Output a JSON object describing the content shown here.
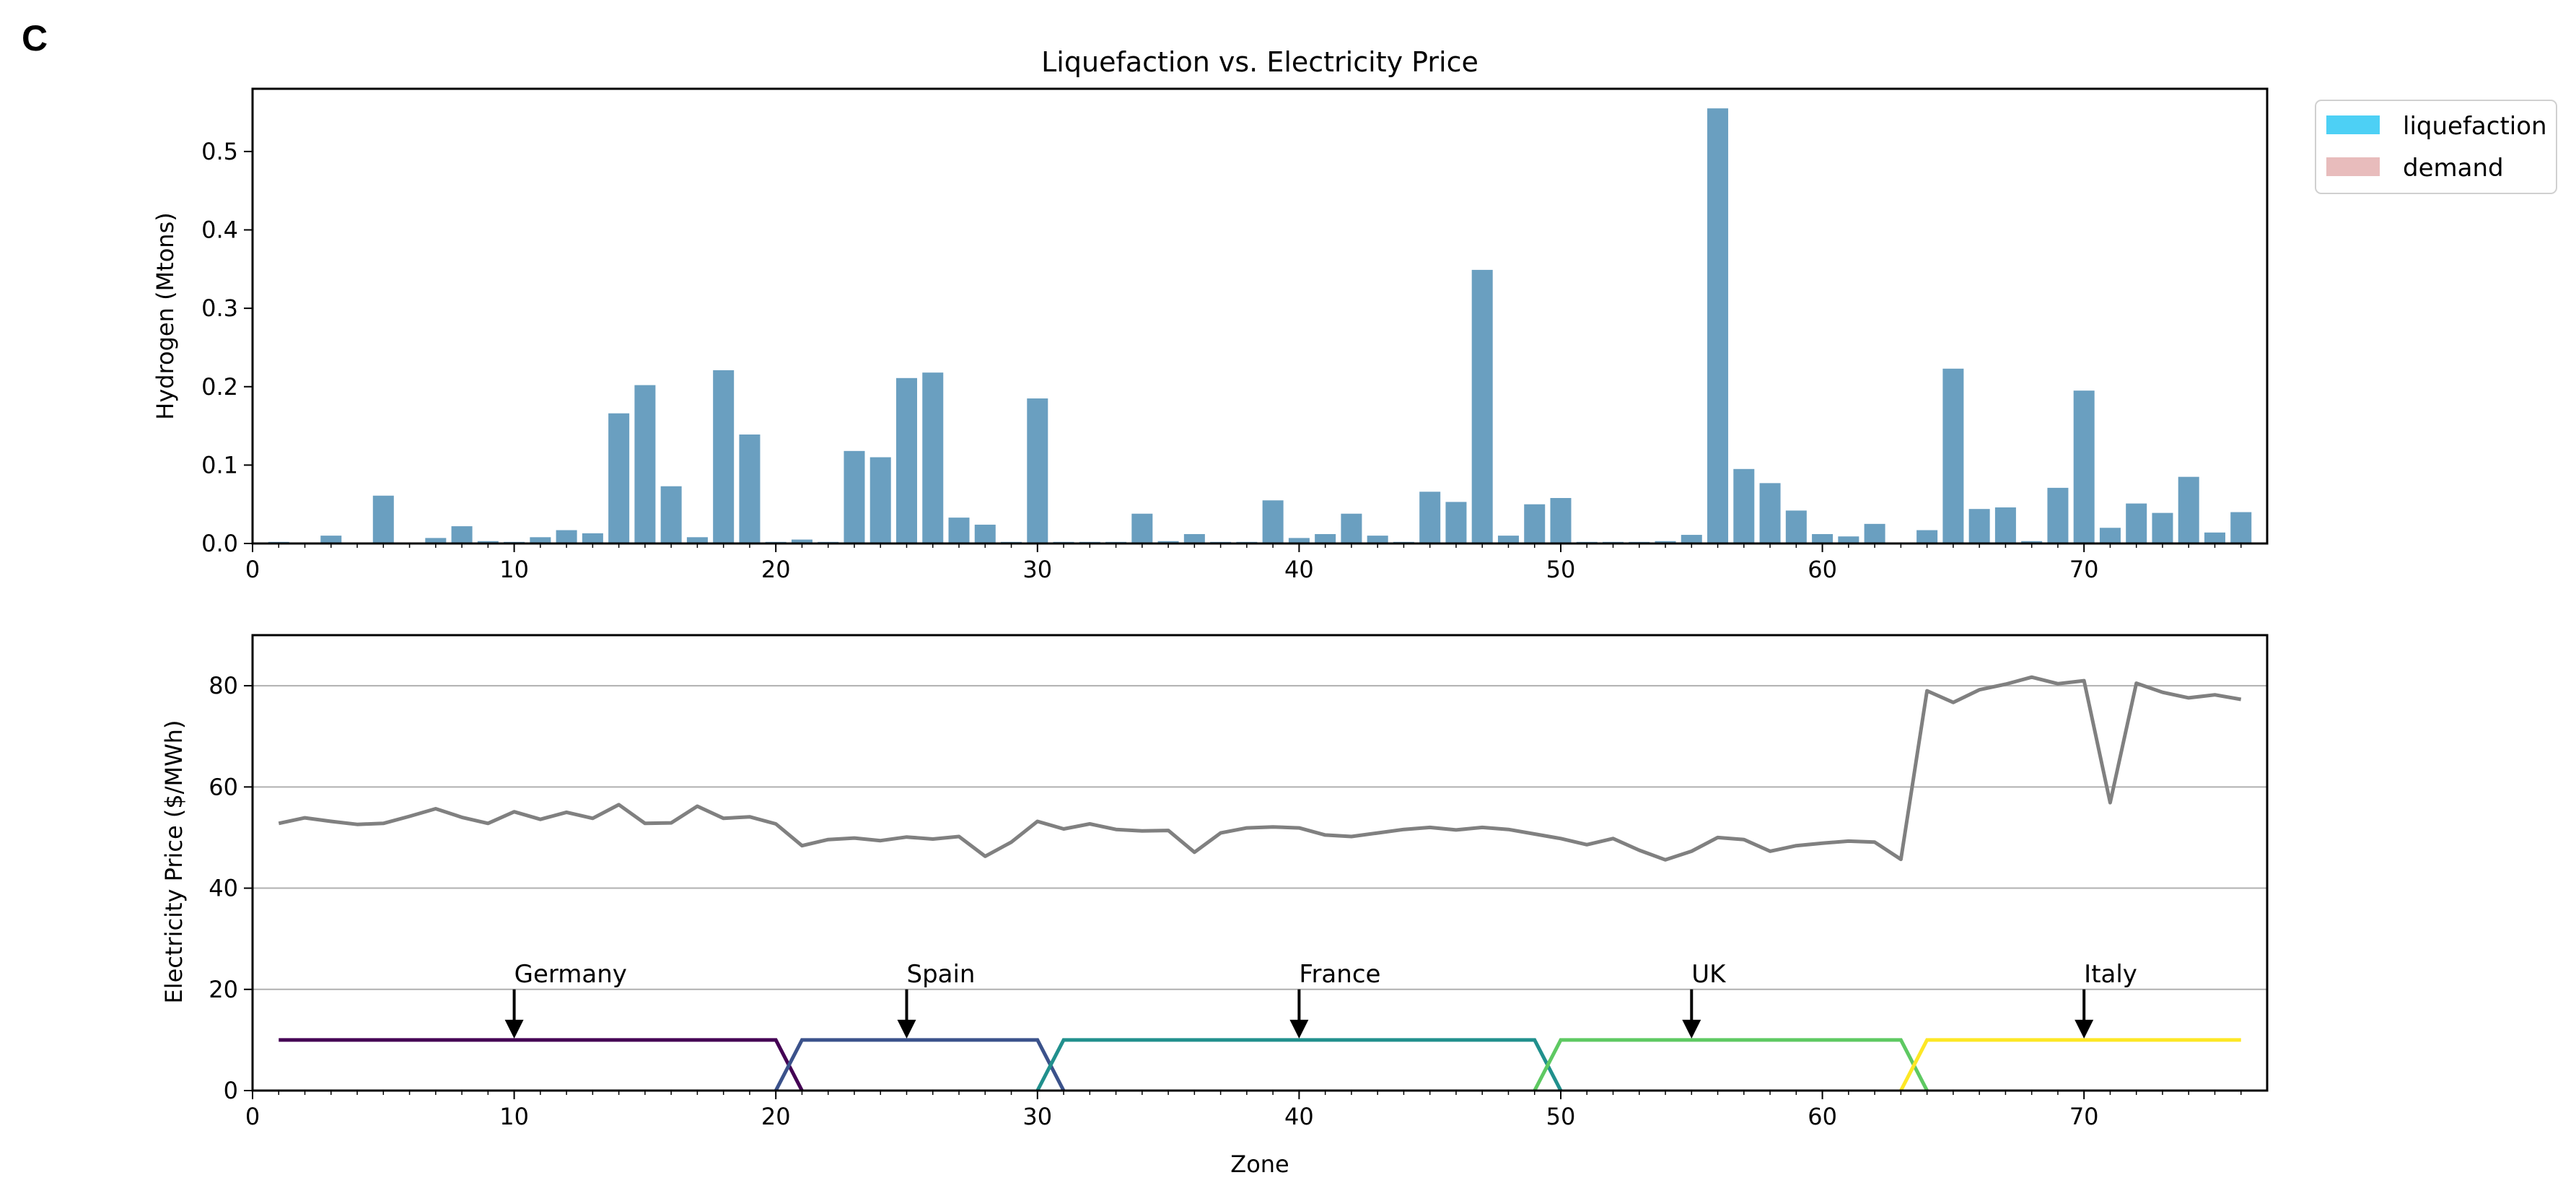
{
  "panel_label": "C",
  "chart_data": [
    {
      "type": "bar",
      "title": "Liquefaction vs. Electricity Price",
      "xlabel": "",
      "ylabel": "Hydrogen (Mtons)",
      "xlim": [
        0,
        77
      ],
      "ylim": [
        0,
        0.58
      ],
      "xticks": [
        0,
        10,
        20,
        30,
        40,
        50,
        60,
        70
      ],
      "yticks": [
        0.0,
        0.1,
        0.2,
        0.3,
        0.4,
        0.5
      ],
      "grid": false,
      "legend": {
        "placement": "outside-top-right",
        "entries": [
          {
            "label": "liquefaction",
            "color": "#4dd0f5"
          },
          {
            "label": "demand",
            "color": "#e8bcbc"
          }
        ]
      },
      "bar_color": "#6a9fc0",
      "x": [
        1,
        2,
        3,
        4,
        5,
        6,
        7,
        8,
        9,
        10,
        11,
        12,
        13,
        14,
        15,
        16,
        17,
        18,
        19,
        20,
        21,
        22,
        23,
        24,
        25,
        26,
        27,
        28,
        29,
        30,
        31,
        32,
        33,
        34,
        35,
        36,
        37,
        38,
        39,
        40,
        41,
        42,
        43,
        44,
        45,
        46,
        47,
        48,
        49,
        50,
        51,
        52,
        53,
        54,
        55,
        56,
        57,
        58,
        59,
        60,
        61,
        62,
        63,
        64,
        65,
        66,
        67,
        68,
        69,
        70,
        71,
        72,
        73,
        74,
        75,
        76
      ],
      "values": [
        0.002,
        0.001,
        0.01,
        0.001,
        0.061,
        0.001,
        0.007,
        0.022,
        0.003,
        0.002,
        0.008,
        0.017,
        0.013,
        0.166,
        0.202,
        0.073,
        0.008,
        0.221,
        0.139,
        0.002,
        0.005,
        0.002,
        0.118,
        0.11,
        0.211,
        0.218,
        0.033,
        0.024,
        0.002,
        0.185,
        0.002,
        0.002,
        0.002,
        0.038,
        0.003,
        0.012,
        0.002,
        0.002,
        0.055,
        0.007,
        0.012,
        0.038,
        0.01,
        0.002,
        0.066,
        0.053,
        0.349,
        0.01,
        0.05,
        0.058,
        0.002,
        0.002,
        0.002,
        0.003,
        0.011,
        0.555,
        0.095,
        0.077,
        0.042,
        0.012,
        0.009,
        0.025,
        0.001,
        0.017,
        0.223,
        0.044,
        0.046,
        0.003,
        0.071,
        0.195,
        0.02,
        0.051,
        0.039,
        0.085,
        0.014,
        0.04
      ]
    },
    {
      "type": "line",
      "title": "",
      "xlabel": "Zone",
      "ylabel": "Electricity Price ($/MWh)",
      "xlim": [
        0,
        77
      ],
      "ylim": [
        0,
        90
      ],
      "xticks": [
        0,
        10,
        20,
        30,
        40,
        50,
        60,
        70
      ],
      "yticks": [
        0,
        20,
        40,
        60,
        80
      ],
      "grid": "y",
      "series": [
        {
          "color": "#808080",
          "x": [
            1,
            2,
            3,
            4,
            5,
            6,
            7,
            8,
            9,
            10,
            11,
            12,
            13,
            14,
            15,
            16,
            17,
            18,
            19,
            20,
            21,
            22,
            23,
            24,
            25,
            26,
            27,
            28,
            29,
            30,
            31,
            32,
            33,
            34,
            35,
            36,
            37,
            38,
            39,
            40,
            41,
            42,
            43,
            44,
            45,
            46,
            47,
            48,
            49,
            50,
            51,
            52,
            53,
            54,
            55,
            56,
            57,
            58,
            59,
            60,
            61,
            62,
            63,
            64,
            65,
            66,
            67,
            68,
            69,
            70,
            71,
            72,
            73,
            74,
            75,
            76
          ],
          "values": [
            52.8,
            53.9,
            53.2,
            52.6,
            52.8,
            54.2,
            55.7,
            54.0,
            52.8,
            55.1,
            53.6,
            55.0,
            53.8,
            56.5,
            52.8,
            52.9,
            56.2,
            53.8,
            54.1,
            52.7,
            48.4,
            49.6,
            49.9,
            49.4,
            50.1,
            49.7,
            50.2,
            46.3,
            49.1,
            53.2,
            51.7,
            52.7,
            51.6,
            51.3,
            51.4,
            47.1,
            50.9,
            51.9,
            52.1,
            51.9,
            50.5,
            50.2,
            50.9,
            51.6,
            52.0,
            51.5,
            52.0,
            51.6,
            50.7,
            49.8,
            48.6,
            49.8,
            47.5,
            45.6,
            47.3,
            50.0,
            49.6,
            47.3,
            48.4,
            48.9,
            49.3,
            49.1,
            45.7,
            79.0,
            76.7,
            79.2,
            80.3,
            81.7,
            80.4,
            81.0,
            56.9,
            80.5,
            78.7,
            77.6,
            78.2,
            77.3
          ]
        }
      ],
      "regions": [
        {
          "name": "Germany",
          "start": 1,
          "end": 20,
          "arrow_x": 10,
          "color": "#440154"
        },
        {
          "name": "Spain",
          "start": 21,
          "end": 30,
          "arrow_x": 25,
          "color": "#3b528b"
        },
        {
          "name": "France",
          "start": 31,
          "end": 49,
          "arrow_x": 40,
          "color": "#21908d"
        },
        {
          "name": "UK",
          "start": 50,
          "end": 63,
          "arrow_x": 55,
          "color": "#5ec962"
        },
        {
          "name": "Italy",
          "start": 64,
          "end": 76,
          "arrow_x": 70,
          "color": "#fde725"
        }
      ],
      "region_level": 10
    }
  ]
}
